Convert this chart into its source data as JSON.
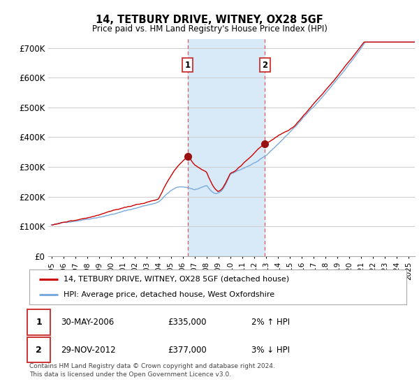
{
  "title": "14, TETBURY DRIVE, WITNEY, OX28 5GF",
  "subtitle": "Price paid vs. HM Land Registry's House Price Index (HPI)",
  "ylabel_ticks": [
    "£0",
    "£100K",
    "£200K",
    "£300K",
    "£400K",
    "£500K",
    "£600K",
    "£700K"
  ],
  "ytick_values": [
    0,
    100000,
    200000,
    300000,
    400000,
    500000,
    600000,
    700000
  ],
  "ylim": [
    0,
    730000
  ],
  "xlim_start": 1994.7,
  "xlim_end": 2025.5,
  "sale1_date": 2006.41,
  "sale1_price": 335000,
  "sale2_date": 2012.91,
  "sale2_price": 377000,
  "sale1_label": "1",
  "sale2_label": "2",
  "line_color_red": "#cc0000",
  "line_color_blue": "#7aaadd",
  "shaded_color": "#d8eaf8",
  "dashed_color": "#dd4444",
  "background_color": "#ffffff",
  "grid_color": "#cccccc",
  "legend_label1": "14, TETBURY DRIVE, WITNEY, OX28 5GF (detached house)",
  "legend_label2": "HPI: Average price, detached house, West Oxfordshire",
  "footnote1": "Contains HM Land Registry data © Crown copyright and database right 2024.",
  "footnote2": "This data is licensed under the Open Government Licence v3.0.",
  "table_row1": [
    "1",
    "30-MAY-2006",
    "£335,000",
    "2% ↑ HPI"
  ],
  "table_row2": [
    "2",
    "29-NOV-2012",
    "£377,000",
    "3% ↓ HPI"
  ],
  "xtick_years": [
    1995,
    1996,
    1997,
    1998,
    1999,
    2000,
    2001,
    2002,
    2003,
    2004,
    2005,
    2006,
    2007,
    2008,
    2009,
    2010,
    2011,
    2012,
    2013,
    2014,
    2015,
    2016,
    2017,
    2018,
    2019,
    2020,
    2021,
    2022,
    2023,
    2024,
    2025
  ]
}
